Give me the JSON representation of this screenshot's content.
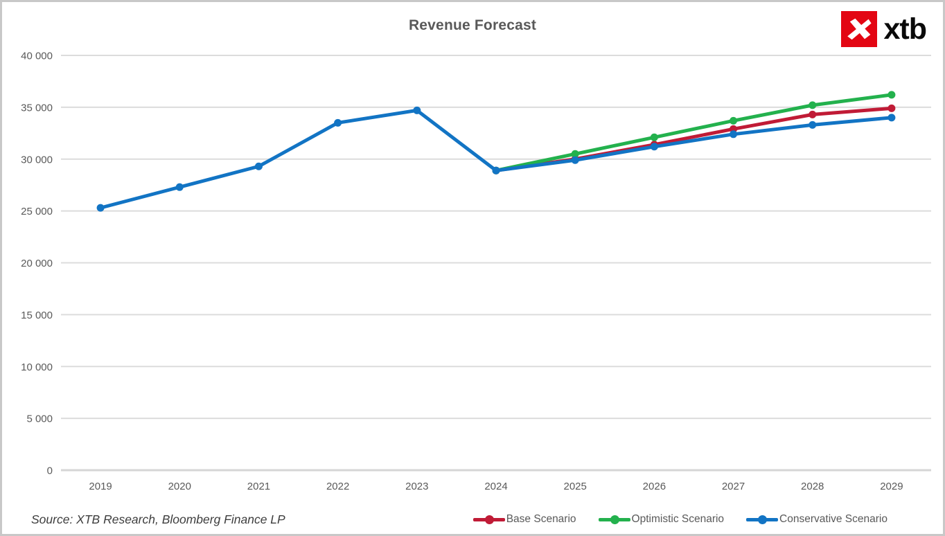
{
  "source_note": "Source: XTB Research, Bloomberg Finance LP",
  "logo": {
    "text": "xtb",
    "mark": "xtb-x-mark-icon",
    "square_color": "#e30613",
    "text_color": "#0a0a0a"
  },
  "chart_data": {
    "type": "line",
    "title": "Revenue Forecast",
    "categories": [
      "2019",
      "2020",
      "2021",
      "2022",
      "2023",
      "2024",
      "2025",
      "2026",
      "2027",
      "2028",
      "2029"
    ],
    "series": [
      {
        "name": "Base Scenario",
        "color": "#c01b36",
        "values": [
          null,
          null,
          null,
          null,
          null,
          28900,
          30000,
          31400,
          32900,
          34300,
          34900
        ]
      },
      {
        "name": "Optimistic Scenario",
        "color": "#23b14d",
        "values": [
          null,
          null,
          null,
          null,
          null,
          28900,
          30500,
          32100,
          33700,
          35200,
          36200
        ]
      },
      {
        "name": "Conservative Scenario",
        "color": "#1274c4",
        "values": [
          25300,
          27300,
          29300,
          33500,
          34700,
          28900,
          29900,
          31200,
          32400,
          33300,
          34000
        ]
      }
    ],
    "xlabel": "",
    "ylabel": "",
    "ylim": [
      0,
      40000
    ],
    "ytick_step": 5000,
    "ytick_labels": [
      "0",
      "5 000",
      "10 000",
      "15 000",
      "20 000",
      "25 000",
      "30 000",
      "35 000",
      "40 000"
    ],
    "grid": true,
    "gridline_color": "#dcdcdc",
    "axis_line_color": "#d6d6d6",
    "tick_label_color": "#595959",
    "legend_position": "bottom-right"
  }
}
